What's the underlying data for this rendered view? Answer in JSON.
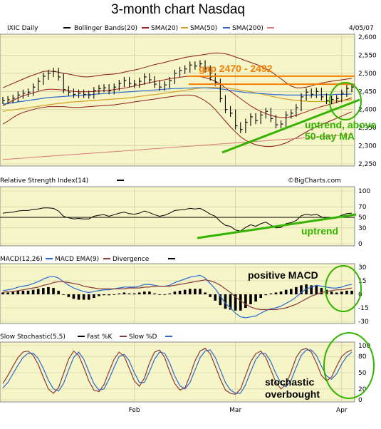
{
  "title": "3-month chart Nasdaq",
  "colors": {
    "panel_bg": "#f5f5c8",
    "grid": "#c8c8a0",
    "bollinger": "#8b1a1a",
    "sma20": "#a01a1a",
    "sma50": "#d4a020",
    "sma200": "#2a6ad0",
    "sma200_marker": "#d87878",
    "annotation_green": "#33b300",
    "annotation_orange": "#f47c00",
    "price": "#000000"
  },
  "chart_data": [
    {
      "type": "line",
      "panel": "price",
      "header": {
        "symbol": "IXIC Daily",
        "bollinger": "Bollinger Bands(20)",
        "sma20": "SMA(20)",
        "sma50": "SMA(50)",
        "sma200": "SMA(200)",
        "date": "4/05/07"
      },
      "ylim": [
        2250,
        2600
      ],
      "y_ticks": [
        "2,250",
        "2,300",
        "2,350",
        "2,400",
        "2,450",
        "2,500",
        "2,550",
        "2,600"
      ],
      "y_tick_values": [
        2250,
        2300,
        2350,
        2400,
        2450,
        2500,
        2550,
        2600
      ],
      "x_ticks": [
        "Feb",
        "Mar",
        "Apr"
      ],
      "x_tick_index": [
        26,
        46,
        67
      ],
      "n_bars": 70,
      "closes": [
        2425,
        2427,
        2431,
        2440,
        2445,
        2448,
        2462,
        2478,
        2492,
        2500,
        2505,
        2490,
        2455,
        2448,
        2442,
        2445,
        2442,
        2440,
        2452,
        2458,
        2460,
        2452,
        2462,
        2472,
        2480,
        2472,
        2470,
        2478,
        2490,
        2482,
        2470,
        2462,
        2468,
        2480,
        2500,
        2508,
        2512,
        2523,
        2520,
        2526,
        2512,
        2490,
        2475,
        2430,
        2400,
        2390,
        2355,
        2345,
        2365,
        2380,
        2370,
        2385,
        2395,
        2375,
        2358,
        2360,
        2385,
        2390,
        2405,
        2435,
        2448,
        2442,
        2450,
        2435,
        2425,
        2428,
        2430,
        2445,
        2458,
        2462
      ],
      "sma20": [
        2410,
        2418,
        2425,
        2432,
        2438,
        2442,
        2446,
        2450,
        2454,
        2456,
        2456,
        2455,
        2454,
        2452,
        2450,
        2449,
        2449,
        2449,
        2450,
        2451,
        2452,
        2453,
        2455,
        2457,
        2459,
        2462,
        2465,
        2468,
        2471,
        2474,
        2477,
        2480,
        2482,
        2485,
        2487,
        2489,
        2491,
        2492,
        2492,
        2491,
        2488,
        2484,
        2478,
        2470,
        2460,
        2450,
        2440,
        2430,
        2420,
        2410,
        2402,
        2395,
        2389,
        2384,
        2380,
        2378,
        2378,
        2380,
        2384,
        2389,
        2394,
        2399,
        2404,
        2408,
        2412,
        2416,
        2420,
        2424,
        2428,
        2432
      ],
      "bb_upper": [
        2460,
        2466,
        2472,
        2478,
        2484,
        2490,
        2495,
        2500,
        2505,
        2506,
        2505,
        2503,
        2500,
        2498,
        2495,
        2492,
        2490,
        2490,
        2492,
        2494,
        2496,
        2497,
        2498,
        2500,
        2503,
        2506,
        2509,
        2512,
        2516,
        2520,
        2524,
        2527,
        2530,
        2534,
        2537,
        2540,
        2544,
        2546,
        2548,
        2550,
        2552,
        2555,
        2556,
        2556,
        2554,
        2550,
        2545,
        2540,
        2535,
        2530,
        2525,
        2520,
        2512,
        2505,
        2495,
        2485,
        2474,
        2465,
        2460,
        2460,
        2462,
        2465,
        2470,
        2473,
        2476,
        2478,
        2480,
        2482,
        2484,
        2486
      ],
      "bb_lower": [
        2360,
        2368,
        2378,
        2386,
        2392,
        2396,
        2400,
        2404,
        2406,
        2408,
        2408,
        2408,
        2408,
        2407,
        2406,
        2406,
        2407,
        2408,
        2409,
        2410,
        2411,
        2412,
        2413,
        2415,
        2417,
        2419,
        2421,
        2423,
        2425,
        2427,
        2429,
        2431,
        2433,
        2435,
        2437,
        2439,
        2440,
        2440,
        2438,
        2432,
        2424,
        2414,
        2400,
        2384,
        2368,
        2352,
        2338,
        2325,
        2315,
        2308,
        2303,
        2300,
        2298,
        2298,
        2300,
        2303,
        2308,
        2315,
        2322,
        2330,
        2338,
        2346,
        2352,
        2358,
        2364,
        2370,
        2376,
        2382,
        2388,
        2394
      ],
      "sma50": [
        2395,
        2397,
        2399,
        2401,
        2403,
        2405,
        2407,
        2409,
        2411,
        2413,
        2415,
        2417,
        2418,
        2420,
        2421,
        2422,
        2423,
        2424,
        2425,
        2426,
        2427,
        2428,
        2429,
        2430,
        2431,
        2432,
        2434,
        2436,
        2438,
        2440,
        2441,
        2443,
        2445,
        2447,
        2449,
        2451,
        2453,
        2455,
        2457,
        2459,
        2460,
        2461,
        2461,
        2461,
        2460,
        2458,
        2456,
        2454,
        2452,
        2449,
        2446,
        2443,
        2440,
        2437,
        2434,
        2431,
        2429,
        2427,
        2425,
        2424,
        2423,
        2422,
        2422,
        2422,
        2422,
        2423,
        2424,
        2425,
        2426,
        2427
      ],
      "sma200": [
        2415,
        2417,
        2419,
        2421,
        2423,
        2425,
        2427,
        2429,
        2431,
        2433,
        2434,
        2435,
        2436,
        2437,
        2438,
        2439,
        2440,
        2441,
        2442,
        2443,
        2444,
        2445,
        2446,
        2447,
        2448,
        2449,
        2450,
        2451,
        2452,
        2453,
        2454,
        2455,
        2456,
        2457,
        2458,
        2458,
        2459,
        2459,
        2460,
        2460,
        2460,
        2459,
        2458,
        2457,
        2455,
        2453,
        2451,
        2449,
        2447,
        2446,
        2445,
        2444,
        2443,
        2442,
        2441,
        2441,
        2440,
        2440,
        2440,
        2440,
        2440,
        2440,
        2440,
        2441,
        2441,
        2441,
        2442,
        2442,
        2442,
        2443
      ],
      "sma200_lower": [
        2262,
        2263,
        2264,
        2265,
        2266,
        2267,
        2268,
        2269,
        2270,
        2271,
        2272,
        2273,
        2274,
        2275,
        2276,
        2277,
        2278,
        2279,
        2280,
        2281,
        2282,
        2283,
        2284,
        2285,
        2286,
        2287,
        2288,
        2289,
        2290,
        2291,
        2292,
        2293,
        2294,
        2295,
        2296,
        2297,
        2298,
        2299,
        2300,
        2301,
        2302,
        2303,
        2304,
        2305,
        2306,
        2307,
        2308,
        2309,
        2310,
        2311,
        2312,
        2313,
        2314,
        2315,
        2316,
        2317,
        2318,
        2319,
        2320,
        2321,
        2322,
        2323,
        2324,
        2325,
        2326,
        2327,
        2328,
        2329,
        2330,
        2331
      ],
      "gap_levels": [
        2470,
        2492
      ],
      "annotations": {
        "gap": "gap  2470 - 2492",
        "uptrend1": "uptrend, above",
        "uptrend2": "50-day MA"
      }
    },
    {
      "type": "line",
      "panel": "rsi",
      "header": "Relative Strength Index(14)",
      "source": "©BigCharts.com",
      "ylim": [
        0,
        100
      ],
      "y_ticks": [
        "100",
        "70",
        "50",
        "30",
        "0"
      ],
      "y_tick_values": [
        100,
        70,
        50,
        30,
        0
      ],
      "values": [
        58,
        59,
        60,
        62,
        63,
        63,
        65,
        66,
        68,
        68,
        67,
        62,
        52,
        49,
        47,
        48,
        47,
        47,
        52,
        54,
        55,
        52,
        55,
        58,
        60,
        57,
        56,
        58,
        62,
        59,
        55,
        52,
        54,
        58,
        63,
        64,
        65,
        67,
        66,
        67,
        62,
        56,
        52,
        42,
        35,
        33,
        26,
        24,
        31,
        36,
        33,
        38,
        41,
        35,
        30,
        31,
        38,
        40,
        44,
        53,
        56,
        54,
        56,
        51,
        48,
        49,
        50,
        54,
        57,
        58
      ],
      "annotation": "uptrend"
    },
    {
      "type": "bar",
      "panel": "macd",
      "header": {
        "macd": "MACD(12,26)",
        "ema": "MACD EMA(9)",
        "divergence": "Divergence"
      },
      "ylim": [
        -30,
        30
      ],
      "y_ticks": [
        "30",
        "15",
        "0",
        "-15",
        "-30"
      ],
      "y_tick_values": [
        30,
        15,
        0,
        -15,
        -30
      ],
      "macd": [
        4,
        5,
        6,
        8,
        9,
        10,
        12,
        14,
        17,
        19,
        20,
        18,
        14,
        10,
        7,
        5,
        3,
        2,
        3,
        4,
        5,
        5,
        6,
        7,
        8,
        8,
        8,
        9,
        11,
        11,
        10,
        9,
        9,
        10,
        13,
        15,
        17,
        19,
        20,
        21,
        18,
        12,
        6,
        -2,
        -10,
        -15,
        -21,
        -25,
        -26,
        -25,
        -24,
        -21,
        -18,
        -16,
        -15,
        -13,
        -10,
        -7,
        -3,
        2,
        6,
        8,
        10,
        9,
        8,
        7,
        7,
        8,
        10,
        11
      ],
      "signal": [
        2,
        3,
        3,
        4,
        5,
        6,
        7,
        8,
        10,
        11,
        13,
        14,
        14,
        13,
        12,
        11,
        9,
        8,
        7,
        6,
        6,
        6,
        6,
        6,
        6,
        7,
        7,
        7,
        8,
        8,
        9,
        9,
        9,
        9,
        10,
        11,
        12,
        13,
        14,
        15,
        16,
        15,
        13,
        10,
        6,
        2,
        -3,
        -7,
        -11,
        -14,
        -16,
        -17,
        -17,
        -17,
        -17,
        -16,
        -15,
        -13,
        -11,
        -8,
        -5,
        -2,
        0,
        2,
        3,
        4,
        5,
        5,
        6,
        7
      ],
      "divergence": [
        2,
        2,
        3,
        4,
        4,
        4,
        5,
        6,
        7,
        8,
        7,
        4,
        0,
        -3,
        -5,
        -6,
        -6,
        -6,
        -4,
        -2,
        -1,
        -1,
        0,
        1,
        2,
        1,
        1,
        2,
        3,
        3,
        1,
        0,
        0,
        1,
        3,
        4,
        5,
        6,
        6,
        6,
        2,
        -3,
        -7,
        -12,
        -16,
        -17,
        -18,
        -18,
        -15,
        -11,
        -8,
        -4,
        -1,
        1,
        2,
        3,
        5,
        6,
        8,
        10,
        11,
        10,
        10,
        7,
        5,
        3,
        2,
        3,
        4,
        4
      ],
      "annotation": "positive MACD"
    },
    {
      "type": "line",
      "panel": "stochastic",
      "header": {
        "title": "Slow Stochastic(5,5)",
        "fast": "Fast %K",
        "slow": "Slow %D"
      },
      "ylim": [
        0,
        100
      ],
      "y_ticks": [
        "100",
        "80",
        "50",
        "20",
        "0"
      ],
      "y_tick_values": [
        100,
        80,
        50,
        20,
        0
      ],
      "fast_k": [
        30,
        45,
        62,
        78,
        88,
        90,
        82,
        65,
        42,
        20,
        12,
        22,
        48,
        75,
        90,
        82,
        60,
        35,
        18,
        15,
        28,
        52,
        75,
        88,
        80,
        58,
        35,
        25,
        40,
        68,
        88,
        92,
        78,
        52,
        30,
        18,
        22,
        45,
        72,
        90,
        95,
        85,
        62,
        38,
        18,
        12,
        10,
        20,
        45,
        70,
        85,
        90,
        78,
        55,
        32,
        20,
        28,
        52,
        78,
        92,
        95,
        88,
        68,
        45,
        35,
        42,
        62,
        80,
        88,
        92
      ],
      "slow_d": [
        22,
        32,
        48,
        64,
        78,
        86,
        86,
        76,
        58,
        36,
        20,
        16,
        30,
        55,
        78,
        88,
        75,
        52,
        30,
        18,
        20,
        38,
        60,
        80,
        84,
        72,
        50,
        32,
        32,
        52,
        75,
        88,
        86,
        68,
        44,
        26,
        20,
        32,
        55,
        78,
        90,
        92,
        78,
        55,
        32,
        18,
        12,
        12,
        28,
        52,
        74,
        86,
        85,
        70,
        48,
        30,
        24,
        36,
        60,
        82,
        92,
        92,
        82,
        62,
        44,
        38,
        48,
        66,
        80,
        88
      ],
      "annotation1": "stochastic",
      "annotation2": "overbought"
    }
  ]
}
